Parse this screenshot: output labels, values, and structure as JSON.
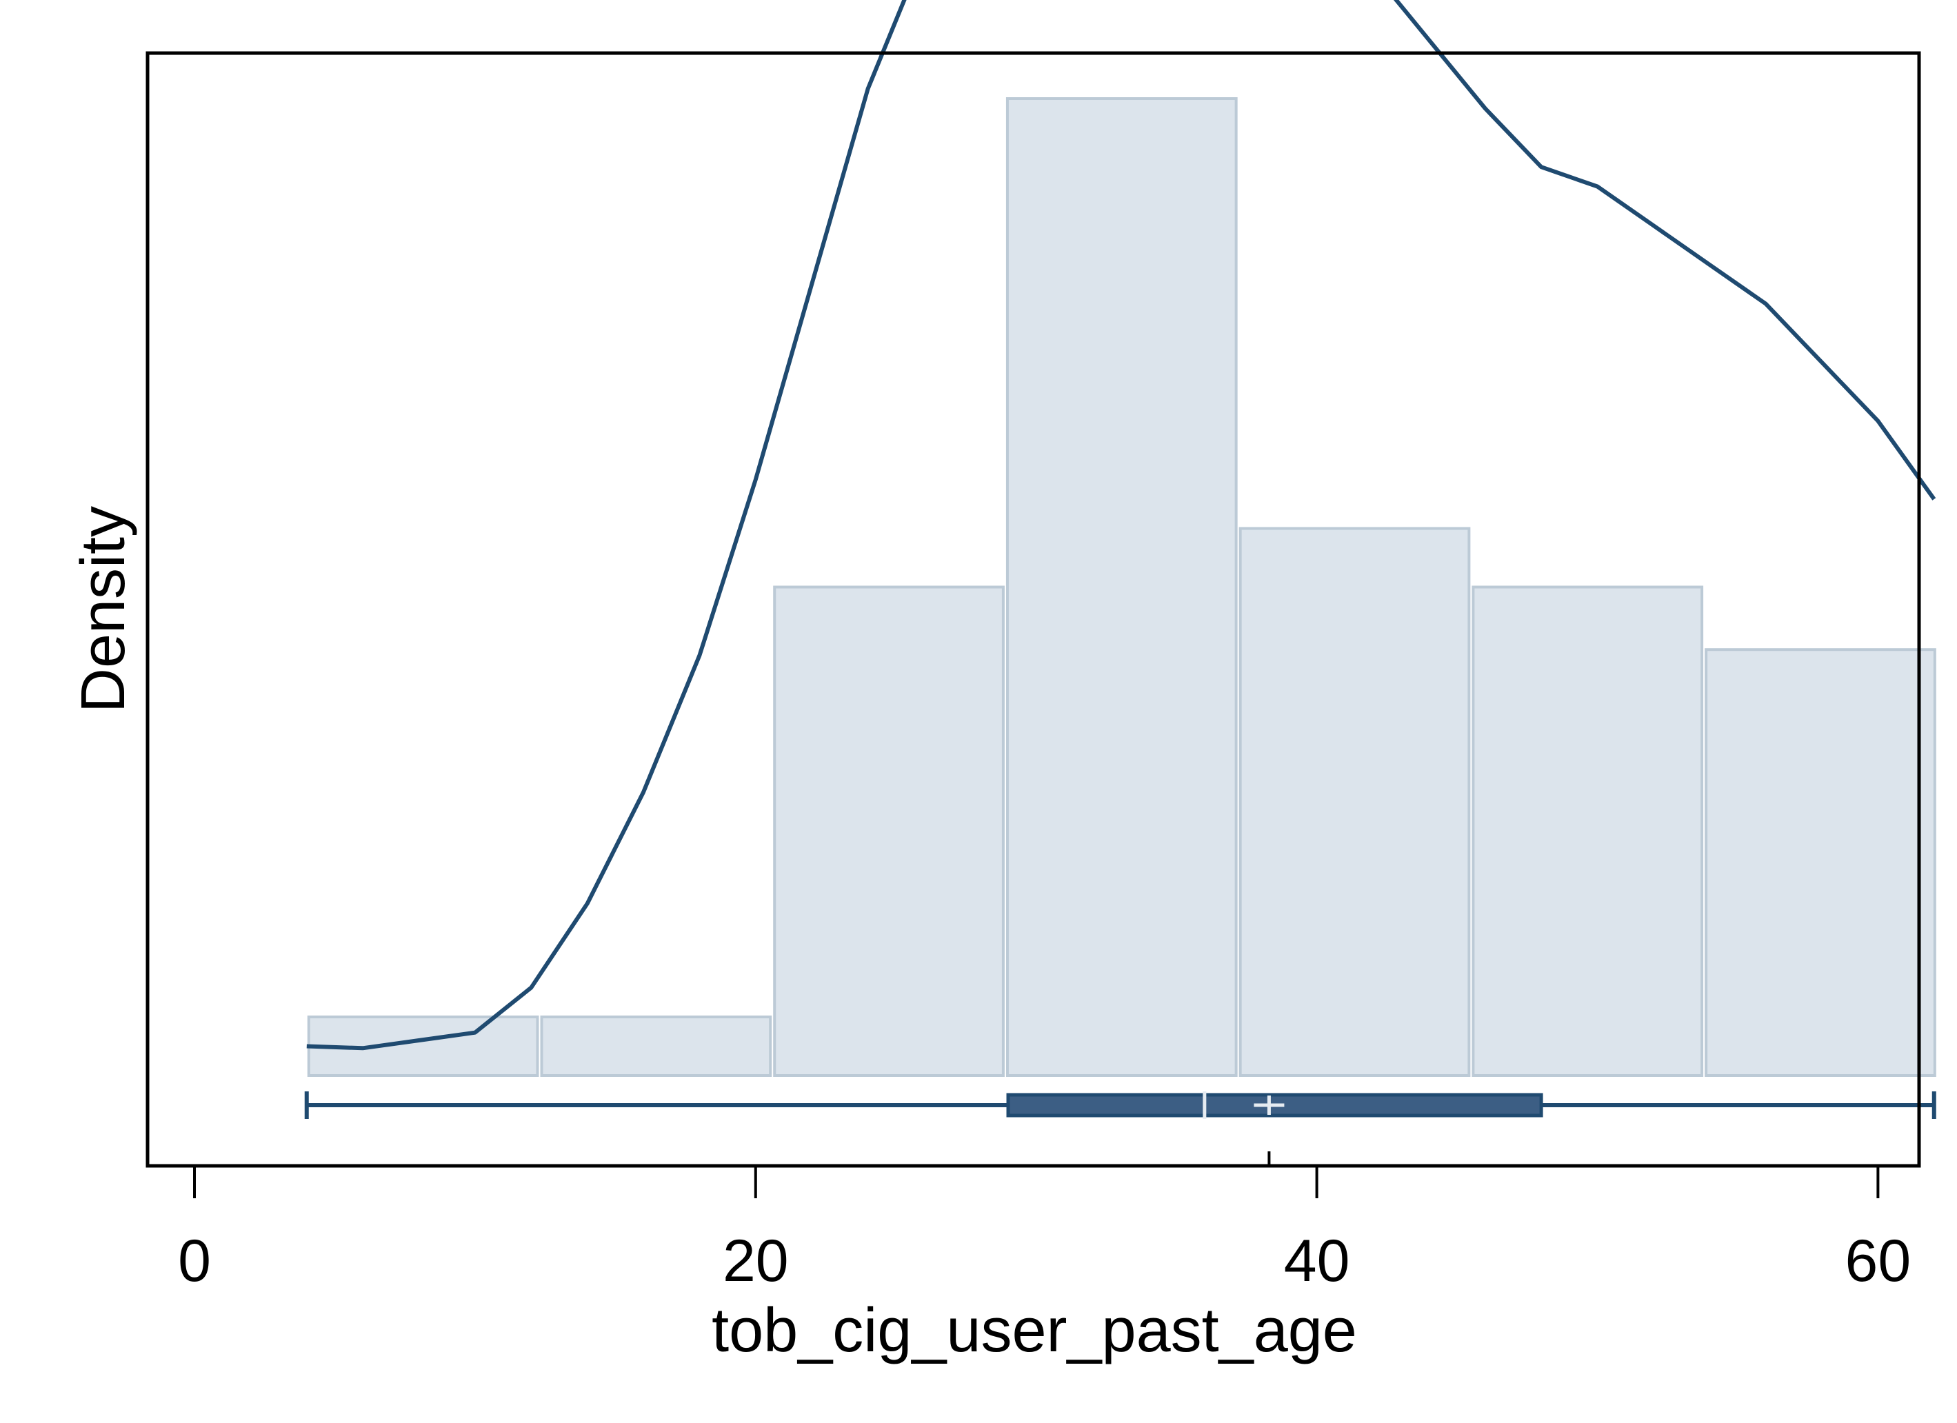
{
  "chart_data": {
    "type": "histogram",
    "xlabel": "tob_cig_user_past_age",
    "ylabel": "Density",
    "xlim": [
      0,
      64
    ],
    "xticks": [
      0,
      20,
      40,
      60
    ],
    "grid": false,
    "legend": "none",
    "histogram": {
      "bin_edges": [
        4,
        12.3,
        20.6,
        28.9,
        37.2,
        45.5,
        53.8,
        62.1
      ],
      "heights": [
        0.003,
        0.003,
        0.025,
        0.05,
        0.028,
        0.025,
        0.0218
      ]
    },
    "density_curve": {
      "x": [
        4,
        6,
        8,
        10,
        12,
        14,
        16,
        18,
        20,
        22,
        24,
        26,
        28,
        30,
        32,
        33,
        34,
        35,
        36,
        38,
        40,
        42,
        44,
        46,
        48,
        50,
        52,
        54,
        56,
        58,
        60,
        62
      ],
      "y": [
        0.0015,
        0.0014,
        0.0018,
        0.0022,
        0.0045,
        0.0088,
        0.0145,
        0.0215,
        0.0305,
        0.0405,
        0.0505,
        0.0575,
        0.0615,
        0.0655,
        0.0675,
        0.0677,
        0.0675,
        0.0672,
        0.0665,
        0.064,
        0.0605,
        0.0565,
        0.053,
        0.0495,
        0.0465,
        0.0455,
        0.0435,
        0.0415,
        0.0395,
        0.0365,
        0.0335,
        0.0295
      ]
    },
    "boxplot": {
      "min": 4,
      "q1": 29,
      "median": 36,
      "mean": 38.3,
      "q3": 48,
      "max": 62
    },
    "colors": {
      "bar_fill": "#dce4ec",
      "bar_stroke": "#bccad6",
      "curve": "#1f4a70",
      "box_fill": "#3c5e84",
      "box_stroke": "#1f4a70",
      "axis": "#000000"
    }
  }
}
